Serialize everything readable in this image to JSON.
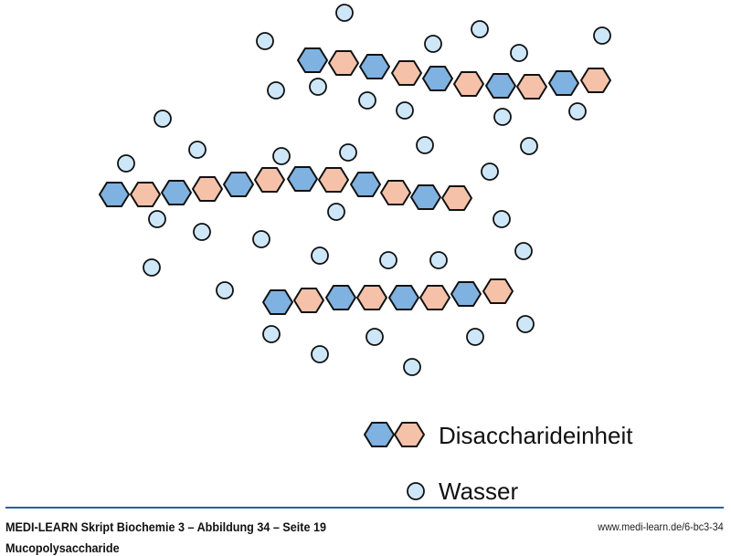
{
  "colors": {
    "disaccharide_a": "#7fb2e0",
    "disaccharide_b": "#f5c2a9",
    "water": "#cde7f9",
    "stroke": "#111111",
    "rule": "#2a5ea8"
  },
  "chains": [
    {
      "units": [
        "a",
        "b",
        "a",
        "b",
        "a",
        "b",
        "a",
        "b",
        "a",
        "b"
      ]
    },
    {
      "units": [
        "a",
        "b",
        "a",
        "b",
        "a",
        "b",
        "a",
        "b",
        "a",
        "b",
        "a",
        "b"
      ]
    },
    {
      "units": [
        "a",
        "b",
        "a",
        "b",
        "a",
        "b",
        "a",
        "b"
      ]
    }
  ],
  "legend": {
    "disaccharide_label": "Disaccharideinheit",
    "water_label": "Wasser"
  },
  "footer": {
    "title": "MEDI-LEARN Skript Biochemie 3 – Abbildung 34 – Seite 19",
    "url": "www.medi-learn.de/6-bc3-34",
    "caption": "Mucopolysaccharide"
  }
}
